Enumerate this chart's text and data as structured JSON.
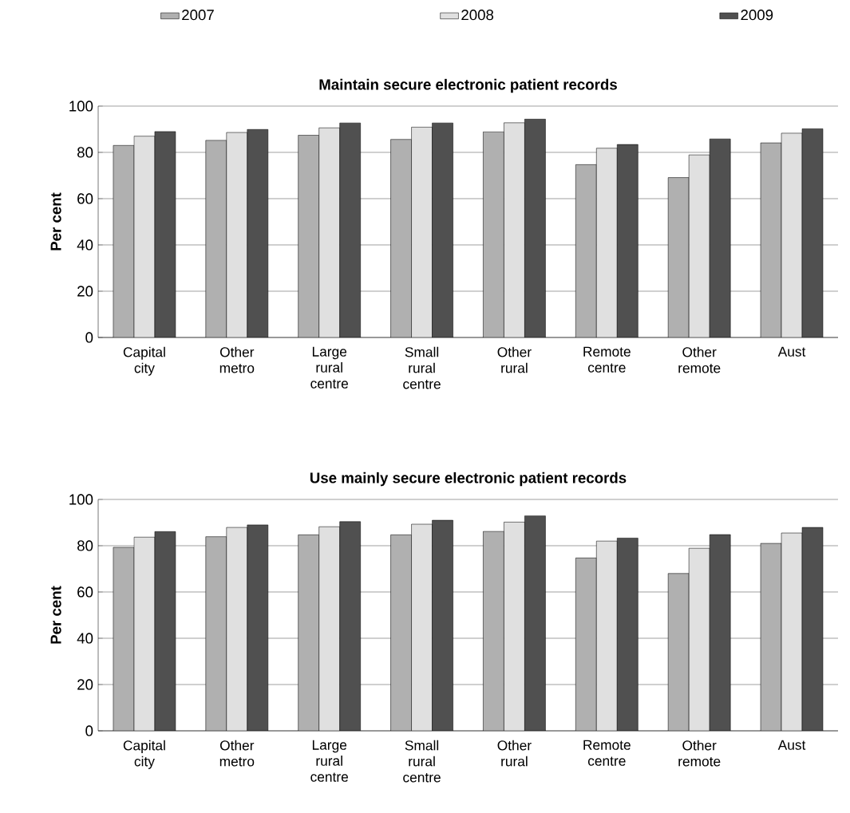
{
  "chart_data": [
    {
      "type": "bar",
      "title": "Maintain secure electronic patient records",
      "ylabel": "Per cent",
      "categories": [
        "Capital city",
        "Other metro",
        "Large rural centre",
        "Small rural centre",
        "Other rural",
        "Remote centre",
        "Other remote",
        "Aust"
      ],
      "series": [
        {
          "name": "2007",
          "color": "#b0b0b0",
          "values": [
            83.0,
            85.2,
            87.4,
            85.6,
            88.9,
            74.7,
            69.1,
            84.1
          ]
        },
        {
          "name": "2008",
          "color": "#e0e0e0",
          "values": [
            87.0,
            88.6,
            90.6,
            90.9,
            92.8,
            81.8,
            78.9,
            88.3
          ]
        },
        {
          "name": "2009",
          "color": "#505050",
          "values": [
            89.0,
            89.9,
            92.7,
            92.7,
            94.4,
            83.4,
            85.8,
            90.2
          ]
        }
      ],
      "ylim": [
        0,
        100
      ],
      "yticks": [
        0,
        20,
        40,
        60,
        80,
        100
      ],
      "grid": "y",
      "legend": "top"
    },
    {
      "type": "bar",
      "title": "Use mainly secure electronic patient records",
      "ylabel": "Per cent",
      "categories": [
        "Capital city",
        "Other metro",
        "Large rural centre",
        "Small rural centre",
        "Other rural",
        "Remote centre",
        "Other remote",
        "Aust"
      ],
      "series": [
        {
          "color": "#b0b0b0",
          "values": [
            79.3,
            83.9,
            84.7,
            84.7,
            86.2,
            74.7,
            68.0,
            81.0
          ]
        },
        {
          "color": "#e0e0e0",
          "values": [
            83.7,
            87.9,
            88.2,
            89.3,
            90.2,
            82.0,
            78.9,
            85.5
          ]
        },
        {
          "color": "#505050",
          "values": [
            86.1,
            89.0,
            90.4,
            91.0,
            92.9,
            83.3,
            84.8,
            87.9
          ]
        }
      ],
      "ylim": [
        0,
        100
      ],
      "yticks": [
        0,
        20,
        40,
        60,
        80,
        100
      ],
      "grid": "y"
    }
  ]
}
